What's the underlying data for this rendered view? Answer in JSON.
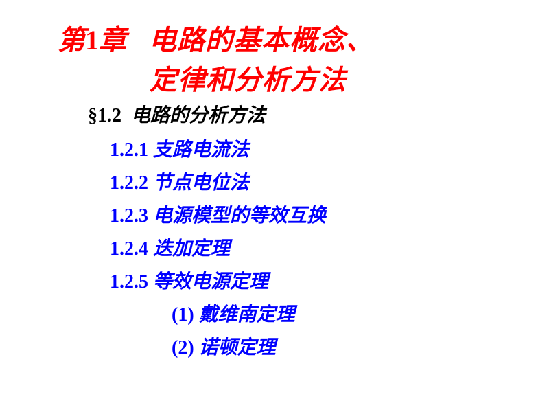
{
  "colors": {
    "title": "#ff0000",
    "section": "#000000",
    "toc": "#0000ff",
    "background": "#ffffff"
  },
  "title": {
    "chapter_prefix": "第",
    "chapter_number": "1",
    "chapter_suffix": "章",
    "text_line1": "电路的基本概念、",
    "text_line2": "定律和分析方法"
  },
  "section": {
    "symbol": "§",
    "number": "1.2",
    "text": "电路的分析方法"
  },
  "toc": [
    {
      "number": "1.2.1",
      "text": "支路电流法"
    },
    {
      "number": "1.2.2",
      "text": "节点电位法"
    },
    {
      "number": "1.2.3",
      "text": "电源模型的等效互换"
    },
    {
      "number": "1.2.4",
      "text": "迭加定理"
    },
    {
      "number": "1.2.5",
      "text": "等效电源定理"
    }
  ],
  "sub_items": [
    {
      "number": "(1)",
      "text": "戴维南定理"
    },
    {
      "number": "(2)",
      "text": "诺顿定理"
    }
  ]
}
